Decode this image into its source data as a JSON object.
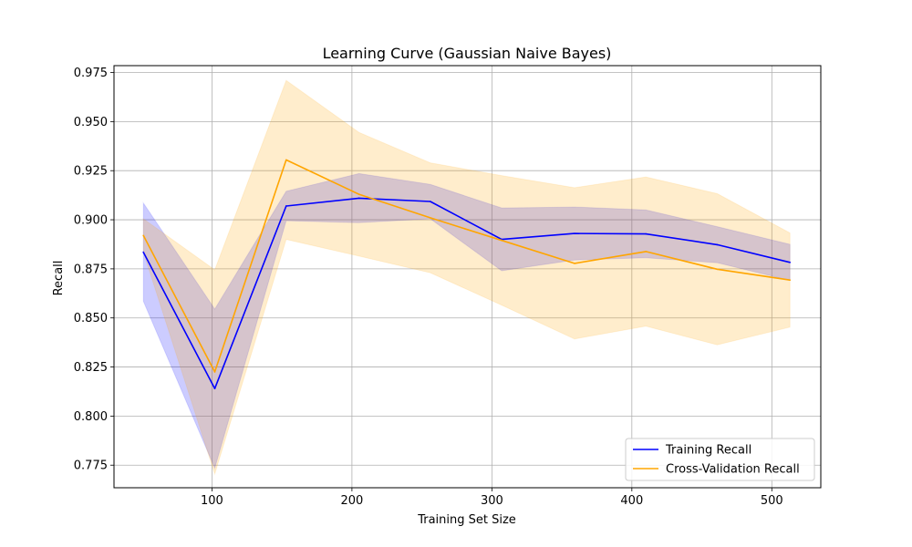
{
  "chart_data": {
    "type": "line",
    "title": "Learning Curve (Gaussian Naive Bayes)",
    "xlabel": "Training Set Size",
    "ylabel": "Recall",
    "xlim": [
      30,
      535
    ],
    "ylim": [
      0.7635,
      0.9785
    ],
    "xticks": [
      100,
      200,
      300,
      400,
      500
    ],
    "yticks": [
      0.775,
      0.8,
      0.825,
      0.85,
      0.875,
      0.9,
      0.925,
      0.95,
      0.975
    ],
    "ytick_format": 3,
    "grid": true,
    "legend_position": "lower right",
    "x": [
      51,
      102,
      153,
      205,
      256,
      307,
      359,
      410,
      461,
      513
    ],
    "series": [
      {
        "name": "Training Recall",
        "color": "#0000ff",
        "band_color": "#0000ff",
        "band_opacity": 0.2,
        "values": [
          0.8835,
          0.814,
          0.907,
          0.911,
          0.9093,
          0.89,
          0.893,
          0.8928,
          0.8873,
          0.8783
        ],
        "upper": [
          0.9085,
          0.8545,
          0.9145,
          0.9235,
          0.918,
          0.906,
          0.9065,
          0.905,
          0.8965,
          0.8875
        ],
        "lower": [
          0.8585,
          0.7735,
          0.8995,
          0.8985,
          0.9005,
          0.874,
          0.8795,
          0.8806,
          0.8781,
          0.8691
        ]
      },
      {
        "name": "Cross-Validation Recall",
        "color": "#ffa500",
        "band_color": "#ffa500",
        "band_opacity": 0.2,
        "values": [
          0.892,
          0.8225,
          0.9305,
          0.913,
          0.901,
          0.8895,
          0.8778,
          0.8838,
          0.8748,
          0.8693
        ],
        "upper": [
          0.9005,
          0.8745,
          0.971,
          0.9445,
          0.929,
          0.9225,
          0.9163,
          0.9218,
          0.9133,
          0.8933
        ],
        "lower": [
          0.8835,
          0.7705,
          0.89,
          0.8815,
          0.873,
          0.8565,
          0.8393,
          0.8458,
          0.8363,
          0.8453
        ]
      }
    ]
  }
}
